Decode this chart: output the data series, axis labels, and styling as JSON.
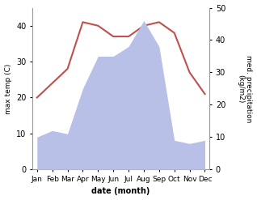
{
  "months": [
    "Jan",
    "Feb",
    "Mar",
    "Apr",
    "May",
    "Jun",
    "Jul",
    "Aug",
    "Sep",
    "Oct",
    "Nov",
    "Dec"
  ],
  "temperature": [
    20,
    24,
    28,
    41,
    40,
    37,
    37,
    40,
    41,
    38,
    27,
    21
  ],
  "precipitation": [
    10,
    12,
    11,
    25,
    35,
    35,
    38,
    46,
    38,
    9,
    8,
    9
  ],
  "temp_color": "#c0504d",
  "precip_fill_color": "#b8c0e8",
  "ylabel_left": "max temp (C)",
  "ylabel_right": "med. precipitation\n(kg/m2)",
  "xlabel": "date (month)",
  "ylim_left": [
    0,
    45
  ],
  "ylim_right": [
    0,
    50
  ],
  "yticks_left": [
    0,
    10,
    20,
    30,
    40
  ],
  "yticks_right": [
    0,
    10,
    20,
    30,
    40,
    50
  ],
  "background_color": "#ffffff"
}
